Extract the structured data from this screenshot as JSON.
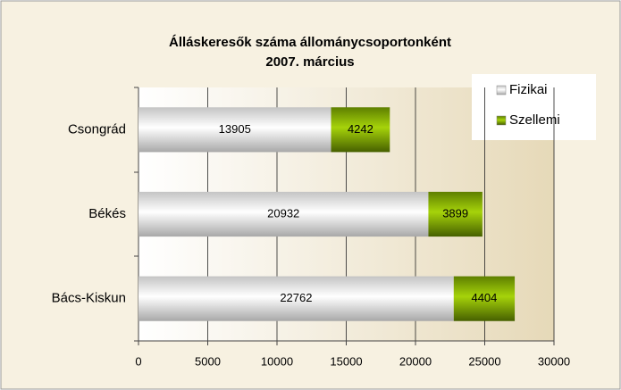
{
  "chart_data": {
    "type": "stacked-barh",
    "title": "Álláskeresők száma állománycsoportonként",
    "subtitle": "2007. március",
    "categories": [
      "Csongrád",
      "Békés",
      "Bács-Kiskun"
    ],
    "series": [
      {
        "name": "Fizikai",
        "color": "#d8d8d8",
        "values": [
          13905,
          20932,
          22762
        ]
      },
      {
        "name": "Szellemi",
        "color": "#7fa800",
        "values": [
          4242,
          3899,
          4404
        ]
      }
    ],
    "xlim": [
      0,
      30000
    ],
    "xticks": [
      0,
      5000,
      10000,
      15000,
      20000,
      25000,
      30000
    ],
    "grid": true,
    "legend": "top-right"
  }
}
